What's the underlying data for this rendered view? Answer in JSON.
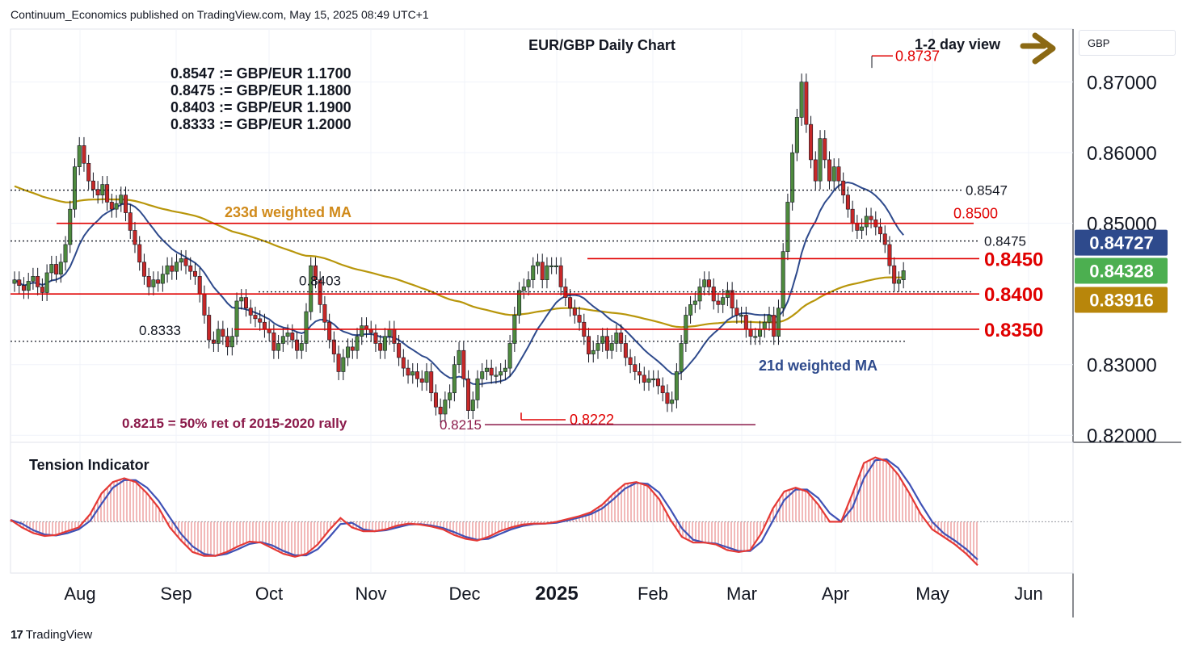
{
  "header": {
    "publisher": "Continuum_Economics published on TradingView.com, May 15, 2025 08:49 UTC+1"
  },
  "footer": {
    "brand": "TradingView"
  },
  "currency_label": "GBP",
  "chart_data": {
    "type": "candlestick",
    "title": "EUR/GBP Daily Chart",
    "view": "1-2 day view",
    "conversions": [
      "0.8547 := GBP/EUR 1.1700",
      "0.8475 := GBP/EUR 1.1800",
      "0.8403 := GBP/EUR 1.1900",
      "0.8333 := GBP/EUR 1.2000"
    ],
    "y_axis": {
      "ticks": [
        "0.87000",
        "0.86000",
        "0.85000",
        "0.83000",
        "0.82000"
      ],
      "range": [
        0.819,
        0.8775
      ]
    },
    "x_axis": {
      "ticks": [
        "Aug",
        "Sep",
        "Oct",
        "Nov",
        "Dec",
        "2025",
        "Feb",
        "Mar",
        "Apr",
        "May",
        "Jun"
      ]
    },
    "price_badges": [
      {
        "label": "0.84727",
        "value": 0.84727,
        "color": "#2e4a8c"
      },
      {
        "label": "0.84328",
        "value": 0.84328,
        "color": "#4caf50"
      },
      {
        "label": "0.83916",
        "value": 0.83916,
        "color": "#b8860b"
      }
    ],
    "levels": [
      {
        "label": "0.8737",
        "value": 0.8737,
        "style": "solid",
        "color": "#e00000"
      },
      {
        "label": "0.8547",
        "value": 0.8547,
        "style": "dotted",
        "color": "#131722"
      },
      {
        "label": "0.8500",
        "value": 0.85,
        "style": "solid",
        "color": "#e00000"
      },
      {
        "label": "0.8475",
        "value": 0.8475,
        "style": "dotted",
        "color": "#131722"
      },
      {
        "label": "0.8450",
        "value": 0.845,
        "style": "solid",
        "color": "#e00000"
      },
      {
        "label": "0.8403",
        "value": 0.8403,
        "style": "dotted",
        "color": "#131722"
      },
      {
        "label": "0.8400",
        "value": 0.84,
        "style": "solid",
        "color": "#e00000"
      },
      {
        "label": "0.8350",
        "value": 0.835,
        "style": "solid",
        "color": "#e00000"
      },
      {
        "label": "0.8333",
        "value": 0.8333,
        "style": "dotted",
        "color": "#131722"
      },
      {
        "label": "0.8222",
        "value": 0.8222,
        "style": "solid",
        "color": "#e00000"
      },
      {
        "label": "0.8215",
        "value": 0.8215,
        "style": "solid",
        "color": "#8b1a4a"
      }
    ],
    "annotations": {
      "ma233": "233d weighted MA",
      "ma21": "21d weighted MA",
      "fib": "0.8215 = 50% ret of 2015-2020 rally",
      "tension": "Tension Indicator"
    },
    "colors": {
      "up": "#4e8a3e",
      "down": "#c62828",
      "ma21": "#2e4a8c",
      "ma233": "#b8960b",
      "level": "#e00000",
      "tension_fast": "#e53935",
      "tension_slow": "#3f51b5"
    },
    "series": [
      {
        "name": "EUR/GBP",
        "close": [
          0.842,
          0.8412,
          0.8405,
          0.8418,
          0.8425,
          0.841,
          0.8402,
          0.843,
          0.8442,
          0.8428,
          0.8445,
          0.847,
          0.852,
          0.858,
          0.861,
          0.8585,
          0.856,
          0.8548,
          0.854,
          0.8555,
          0.853,
          0.852,
          0.8528,
          0.854,
          0.8515,
          0.849,
          0.847,
          0.8445,
          0.8425,
          0.841,
          0.842,
          0.8415,
          0.8428,
          0.844,
          0.8432,
          0.8445,
          0.845,
          0.844,
          0.8432,
          0.8425,
          0.84,
          0.837,
          0.8335,
          0.833,
          0.835,
          0.834,
          0.8325,
          0.834,
          0.839,
          0.8395,
          0.838,
          0.837,
          0.8365,
          0.836,
          0.835,
          0.8345,
          0.832,
          0.833,
          0.834,
          0.8345,
          0.8335,
          0.832,
          0.833,
          0.8375,
          0.844,
          0.842,
          0.8385,
          0.836,
          0.8335,
          0.8315,
          0.829,
          0.831,
          0.8325,
          0.832,
          0.834,
          0.8355,
          0.835,
          0.8345,
          0.833,
          0.832,
          0.834,
          0.835,
          0.833,
          0.831,
          0.8295,
          0.8285,
          0.829,
          0.828,
          0.8275,
          0.829,
          0.826,
          0.824,
          0.823,
          0.825,
          0.826,
          0.83,
          0.832,
          0.828,
          0.8235,
          0.825,
          0.828,
          0.829,
          0.8295,
          0.8285,
          0.8285,
          0.829,
          0.8295,
          0.833,
          0.837,
          0.8405,
          0.841,
          0.842,
          0.844,
          0.8445,
          0.842,
          0.844,
          0.844,
          0.844,
          0.841,
          0.8395,
          0.838,
          0.837,
          0.836,
          0.834,
          0.8315,
          0.832,
          0.833,
          0.834,
          0.832,
          0.833,
          0.8345,
          0.833,
          0.831,
          0.83,
          0.829,
          0.8285,
          0.8275,
          0.828,
          0.828,
          0.827,
          0.826,
          0.8245,
          0.825,
          0.829,
          0.833,
          0.837,
          0.8385,
          0.839,
          0.841,
          0.842,
          0.841,
          0.839,
          0.8385,
          0.8395,
          0.8405,
          0.838,
          0.837,
          0.837,
          0.835,
          0.834,
          0.834,
          0.835,
          0.836,
          0.837,
          0.834,
          0.838,
          0.846,
          0.853,
          0.86,
          0.865,
          0.87,
          0.864,
          0.859,
          0.856,
          0.862,
          0.859,
          0.856,
          0.858,
          0.856,
          0.854,
          0.852,
          0.85,
          0.849,
          0.8495,
          0.851,
          0.8505,
          0.8495,
          0.8485,
          0.847,
          0.844,
          0.8415,
          0.842,
          0.8433
        ]
      },
      {
        "name": "Tension Indicator",
        "values": [
          0.2,
          -0.6,
          -1.2,
          -1.5,
          -1.4,
          -1.0,
          -0.6,
          0.8,
          3.0,
          4.2,
          4.6,
          4.2,
          3.0,
          1.5,
          -0.6,
          -2.0,
          -3.2,
          -3.6,
          -3.6,
          -3.2,
          -2.6,
          -2.1,
          -2.2,
          -2.8,
          -3.4,
          -3.7,
          -3.4,
          -2.4,
          -0.9,
          0.4,
          -0.6,
          -1.0,
          -1.0,
          -0.8,
          -0.4,
          -0.2,
          -0.3,
          -0.5,
          -0.8,
          -1.4,
          -1.8,
          -2.0,
          -1.6,
          -1.0,
          -0.6,
          -0.3,
          -0.2,
          -0.2,
          0.0,
          0.3,
          0.6,
          1.0,
          1.8,
          3.0,
          4.0,
          4.2,
          3.8,
          2.4,
          0.2,
          -1.6,
          -2.2,
          -2.2,
          -2.4,
          -3.0,
          -3.2,
          -3.0,
          -1.2,
          1.4,
          3.2,
          3.6,
          3.2,
          1.8,
          0.0,
          0.0,
          3.0,
          6.2,
          6.8,
          6.4,
          5.0,
          3.0,
          0.8,
          -0.8,
          -1.6,
          -2.4,
          -3.4,
          -4.6
        ]
      }
    ]
  }
}
